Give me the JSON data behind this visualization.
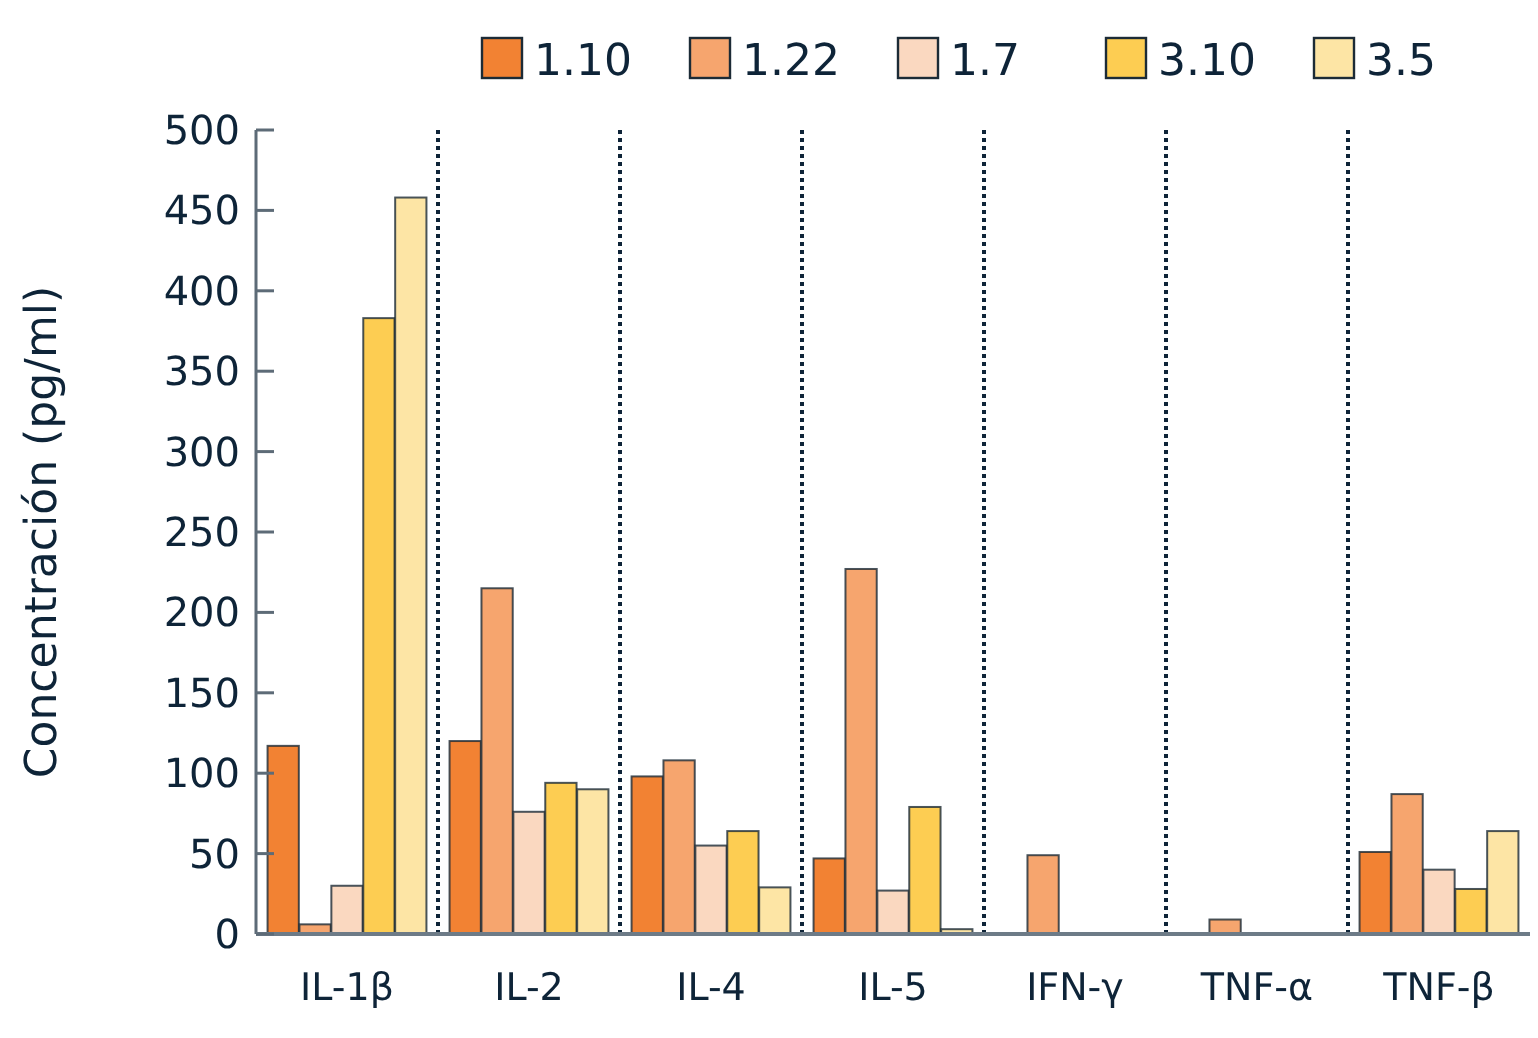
{
  "chart_data": {
    "type": "bar",
    "ylabel": "Concentración (pg/ml)",
    "categories": [
      "IL-1β",
      "IL-2",
      "IL-4",
      "IL-5",
      "IFN-γ",
      "TNF-α",
      "TNF-β"
    ],
    "series": [
      {
        "name": "1.10",
        "color": "#f28233",
        "values": [
          117,
          120,
          98,
          47,
          null,
          null,
          51
        ]
      },
      {
        "name": "1.22",
        "color": "#f6a56e",
        "values": [
          6,
          215,
          108,
          227,
          49,
          9,
          87
        ]
      },
      {
        "name": "1.7",
        "color": "#fad8c0",
        "values": [
          30,
          76,
          55,
          27,
          null,
          null,
          40
        ]
      },
      {
        "name": "3.10",
        "color": "#fdcd52",
        "values": [
          383,
          94,
          64,
          79,
          null,
          null,
          28
        ]
      },
      {
        "name": "3.5",
        "color": "#fde5a5",
        "values": [
          458,
          90,
          29,
          3,
          null,
          null,
          64
        ]
      }
    ],
    "ylim": [
      0,
      500
    ],
    "yticks": [
      0,
      50,
      100,
      150,
      200,
      250,
      300,
      350,
      400,
      450,
      500
    ],
    "grid": "x",
    "legend": "top right"
  }
}
